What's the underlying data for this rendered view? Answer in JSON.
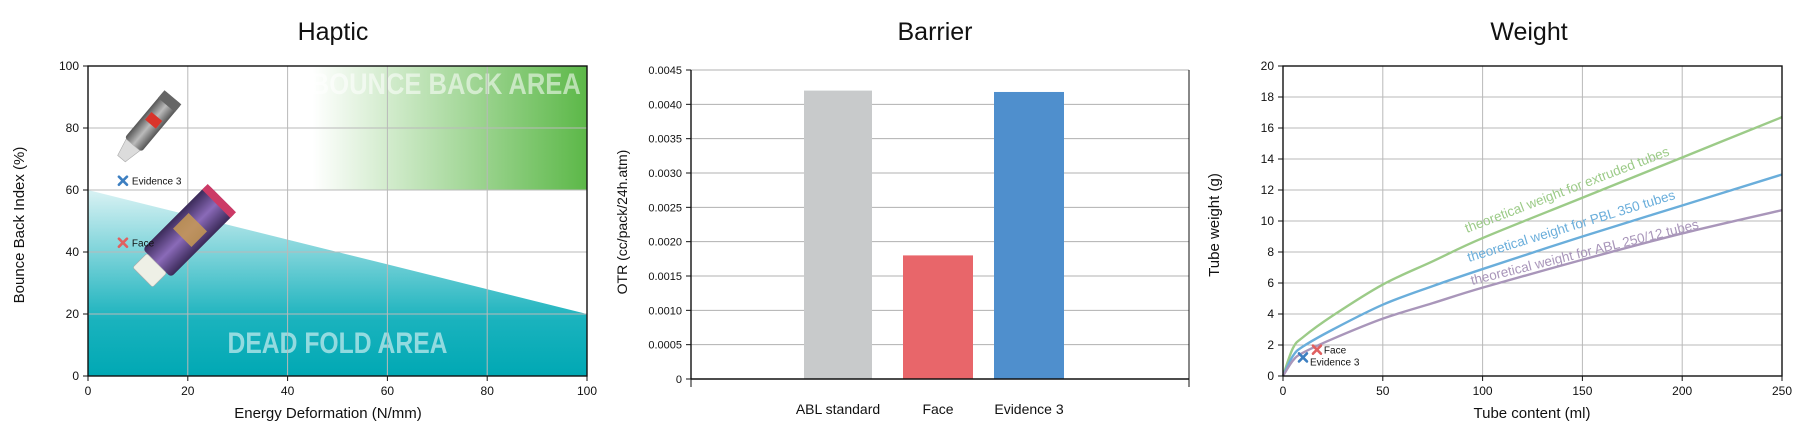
{
  "chart_data": [
    {
      "type": "scatter",
      "title": "Haptic",
      "xlabel": "Energy Deformation (N/mm)",
      "ylabel": "Bounce Back Index (%)",
      "xlim": [
        0,
        100
      ],
      "ylim": [
        0,
        100
      ],
      "xticks": [
        0,
        20,
        40,
        60,
        80,
        100
      ],
      "yticks": [
        0,
        20,
        40,
        60,
        80,
        100
      ],
      "grid": true,
      "regions": [
        {
          "name": "BOUNCE BACK AREA",
          "x": [
            45,
            100
          ],
          "y": [
            60,
            100
          ],
          "color": "#5cb848"
        },
        {
          "name": "DEAD FOLD AREA",
          "boundary_left": 60,
          "boundary_right": 20,
          "color": "#00a9b5"
        }
      ],
      "points": [
        {
          "name": "Evidence 3",
          "x": 7,
          "y": 63,
          "color": "#3d7fc1"
        },
        {
          "name": "Face",
          "x": 7,
          "y": 43,
          "color": "#e06060"
        }
      ]
    },
    {
      "type": "bar",
      "title": "Barrier",
      "xlabel": "",
      "ylabel": "OTR (cc/pack/24h.atm)",
      "ylim": [
        0,
        0.0045
      ],
      "yticks": [
        "0",
        "0.0005",
        "0.0010",
        "0.0015",
        "0.0020",
        "0.0025",
        "0.0030",
        "0.0035",
        "0.0040",
        "0.0045"
      ],
      "grid": true,
      "categories": [
        "ABL standard",
        "Face",
        "Evidence 3"
      ],
      "values": [
        0.0042,
        0.0018,
        0.00418
      ],
      "colors": [
        "#c8cacb",
        "#e8666a",
        "#4f8fcd"
      ]
    },
    {
      "type": "line",
      "title": "Weight",
      "xlabel": "Tube content (ml)",
      "ylabel": "Tube weight (g)",
      "xlim": [
        0,
        250
      ],
      "ylim": [
        0,
        20
      ],
      "xticks": [
        0,
        50,
        100,
        150,
        200,
        250
      ],
      "yticks": [
        0,
        2,
        4,
        6,
        8,
        10,
        12,
        14,
        16,
        18,
        20
      ],
      "grid": true,
      "x": [
        0,
        5,
        10,
        25,
        50,
        75,
        100,
        150,
        200,
        250
      ],
      "series": [
        {
          "name": "theoretical weight for extruded tubes",
          "values": [
            0,
            1.8,
            2.5,
            3.9,
            5.9,
            7.4,
            8.9,
            11.5,
            14.1,
            16.7
          ],
          "color": "#9ccb88"
        },
        {
          "name": "theoretical weight for PBL 350 tubes",
          "values": [
            0,
            1.3,
            1.9,
            3.0,
            4.6,
            5.8,
            6.9,
            9.0,
            11.0,
            13.0
          ],
          "color": "#6aaedb"
        },
        {
          "name": "theoretical weight for ABL 250/12 tubes",
          "values": [
            0,
            1.0,
            1.5,
            2.4,
            3.7,
            4.7,
            5.7,
            7.5,
            9.2,
            10.7
          ],
          "color": "#a996ba"
        }
      ],
      "points": [
        {
          "name": "Face",
          "x": 17,
          "y": 1.7,
          "color": "#e06060"
        },
        {
          "name": "Evidence 3",
          "x": 10,
          "y": 1.2,
          "color": "#3d7fc1"
        }
      ]
    }
  ]
}
